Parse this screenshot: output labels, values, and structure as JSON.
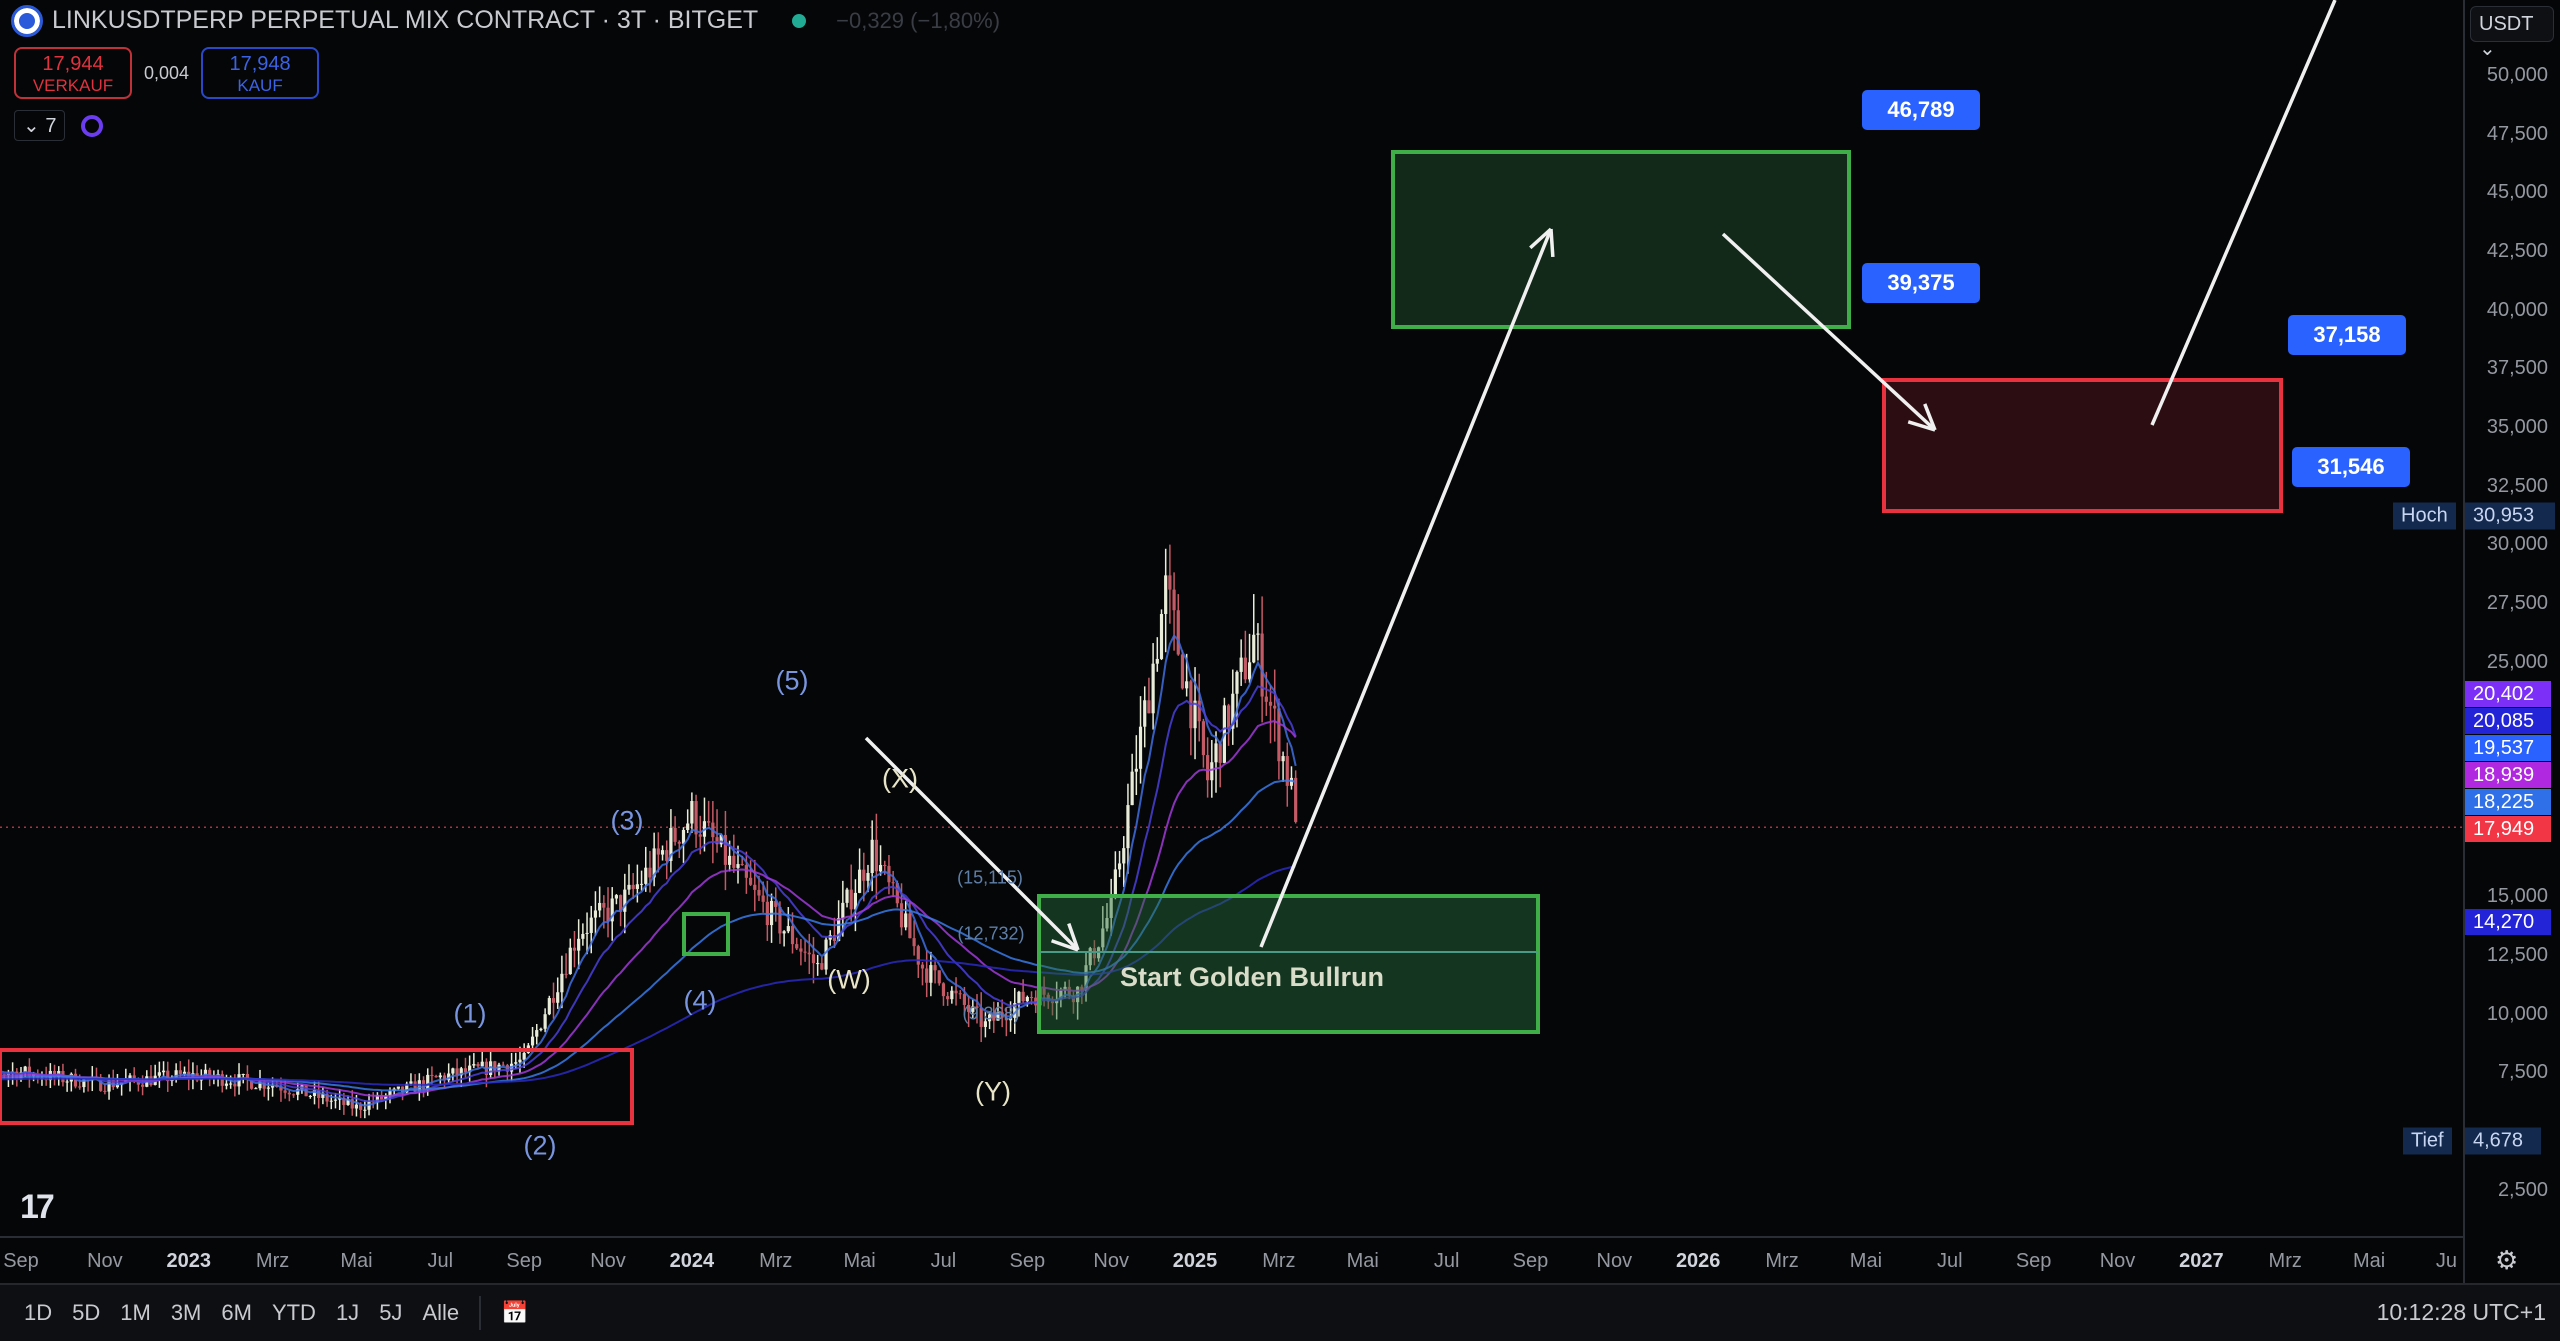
{
  "header": {
    "symbol": "LINKUSDTPERP PERPETUAL MIX CONTRACT · 3T · BITGET",
    "change": "−0,329 (−1,80%)",
    "status_color": "#22ab94"
  },
  "trade": {
    "sell_price": "17,944",
    "sell_label": "VERKAUF",
    "spread": "0,004",
    "buy_price": "17,948",
    "buy_label": "KAUF"
  },
  "indicators": {
    "count": "7"
  },
  "price_axis": {
    "currency": "USDT",
    "ticks": [
      "50,000",
      "47,500",
      "45,000",
      "42,500",
      "40,000",
      "37,500",
      "35,000",
      "32,500",
      "30,000",
      "27,500",
      "25,000",
      "15,000",
      "12,500",
      "10,000",
      "7,500",
      "2,500"
    ],
    "labels": [
      {
        "value": "20,402",
        "color": "#7b2ff7"
      },
      {
        "value": "20,085",
        "color": "#2323d8"
      },
      {
        "value": "19,537",
        "color": "#2962ff"
      },
      {
        "value": "18,939",
        "color": "#b028e0"
      },
      {
        "value": "18,225",
        "color": "#2f6fe8"
      },
      {
        "value": "17,949",
        "color": "#f23645"
      },
      {
        "value": "14,270",
        "color": "#2323d8"
      }
    ],
    "high_label": "Hoch",
    "high_value": "30,953",
    "low_label": "Tief",
    "low_value": "4,678"
  },
  "time_axis": [
    "Sep",
    "Nov",
    "2023",
    "Mrz",
    "Mai",
    "Jul",
    "Sep",
    "Nov",
    "2024",
    "Mrz",
    "Mai",
    "Jul",
    "Sep",
    "Nov",
    "2025",
    "Mrz",
    "Mai",
    "Jul",
    "Sep",
    "Nov",
    "2026",
    "Mrz",
    "Mai",
    "Jul",
    "Sep",
    "Nov",
    "2027",
    "Mrz",
    "Mai",
    "Ju"
  ],
  "annotations": {
    "targets": [
      "46,789",
      "39,375",
      "37,158",
      "31,546"
    ],
    "waves": [
      "(1)",
      "(2)",
      "(3)",
      "(4)",
      "(5)",
      "(W)",
      "(X)",
      "(Y)"
    ],
    "levels": [
      "(15,115)",
      "(12,732)",
      "(9,368)"
    ],
    "zone_text": "Start Golden Bullrun"
  },
  "bottom": {
    "ranges": [
      "1D",
      "5D",
      "1M",
      "3M",
      "6M",
      "YTD",
      "1J",
      "5J",
      "Alle"
    ],
    "clock": "10:12:28 UTC+1"
  },
  "colors": {
    "up": "#e8ecd8",
    "down": "#c45a66",
    "green_zone": "#3fae49",
    "red_zone": "#e8323f",
    "target_label": "#2962ff"
  }
}
